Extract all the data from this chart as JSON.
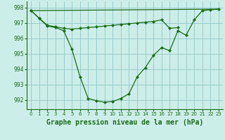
{
  "background_color": "#cceee8",
  "grid_color": "#99cccc",
  "line_color": "#1a6b1a",
  "xlabel": "Graphe pression niveau de la mer (hPa)",
  "xlabel_fontsize": 7,
  "ylim": [
    991.4,
    998.4
  ],
  "xlim": [
    -0.5,
    23.5
  ],
  "yticks": [
    992,
    993,
    994,
    995,
    996,
    997,
    998
  ],
  "xticks": [
    0,
    1,
    2,
    3,
    4,
    5,
    6,
    7,
    8,
    9,
    10,
    11,
    12,
    13,
    14,
    15,
    16,
    17,
    18,
    19,
    20,
    21,
    22,
    23
  ],
  "series1_x": [
    0,
    1,
    2,
    3,
    4,
    5,
    6,
    7,
    8,
    9,
    10,
    11,
    12,
    13,
    14,
    15,
    16,
    17,
    18,
    19,
    20,
    21,
    22,
    23
  ],
  "series1_y": [
    997.8,
    997.3,
    996.8,
    996.7,
    996.5,
    995.3,
    993.5,
    992.1,
    991.95,
    991.85,
    991.9,
    992.1,
    992.4,
    993.5,
    994.1,
    994.9,
    995.4,
    995.2,
    996.5,
    996.2,
    997.2,
    997.8,
    997.85,
    997.9
  ],
  "series2_x": [
    0,
    1,
    2,
    3,
    4,
    5,
    6,
    7,
    8,
    9,
    10,
    11,
    12,
    13,
    14,
    15,
    16,
    17,
    18
  ],
  "series2_y": [
    997.8,
    997.3,
    996.85,
    996.75,
    996.65,
    996.6,
    996.65,
    996.7,
    996.75,
    996.8,
    996.85,
    996.9,
    996.95,
    997.0,
    997.05,
    997.1,
    997.2,
    996.65,
    996.7
  ],
  "series3_x": [
    0,
    23
  ],
  "series3_y": [
    997.8,
    997.9
  ]
}
